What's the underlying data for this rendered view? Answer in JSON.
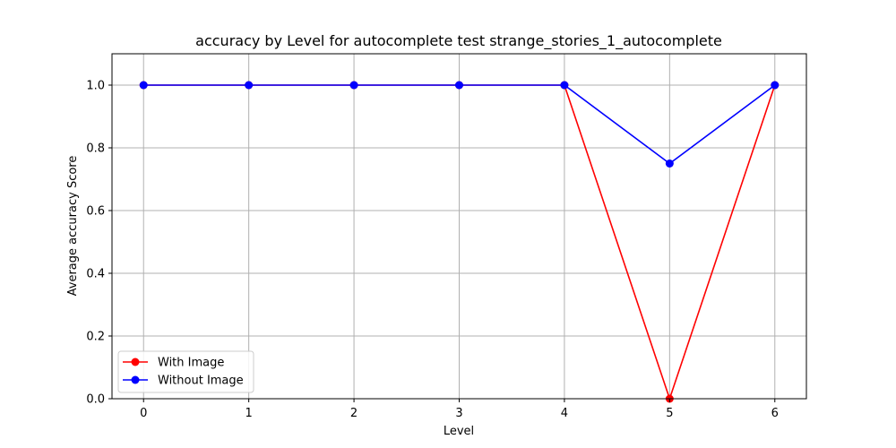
{
  "chart_data": {
    "type": "line",
    "title": "accuracy by Level for autocomplete test strange_stories_1_autocomplete",
    "xlabel": "Level",
    "ylabel": "Average accuracy Score",
    "x": [
      0,
      1,
      2,
      3,
      4,
      5,
      6
    ],
    "xlim": [
      -0.3,
      6.3
    ],
    "ylim": [
      0.0,
      1.1
    ],
    "xticks": [
      "0",
      "1",
      "2",
      "3",
      "4",
      "5",
      "6"
    ],
    "yticks": [
      "0.0",
      "0.2",
      "0.4",
      "0.6",
      "0.8",
      "1.0"
    ],
    "grid": true,
    "legend_position": "lower-left",
    "series": [
      {
        "name": "With Image",
        "color": "#ff0000",
        "values": [
          1.0,
          1.0,
          1.0,
          1.0,
          1.0,
          0.0,
          1.0
        ]
      },
      {
        "name": "Without Image",
        "color": "#0000ff",
        "values": [
          1.0,
          1.0,
          1.0,
          1.0,
          1.0,
          0.75,
          1.0
        ]
      }
    ]
  }
}
